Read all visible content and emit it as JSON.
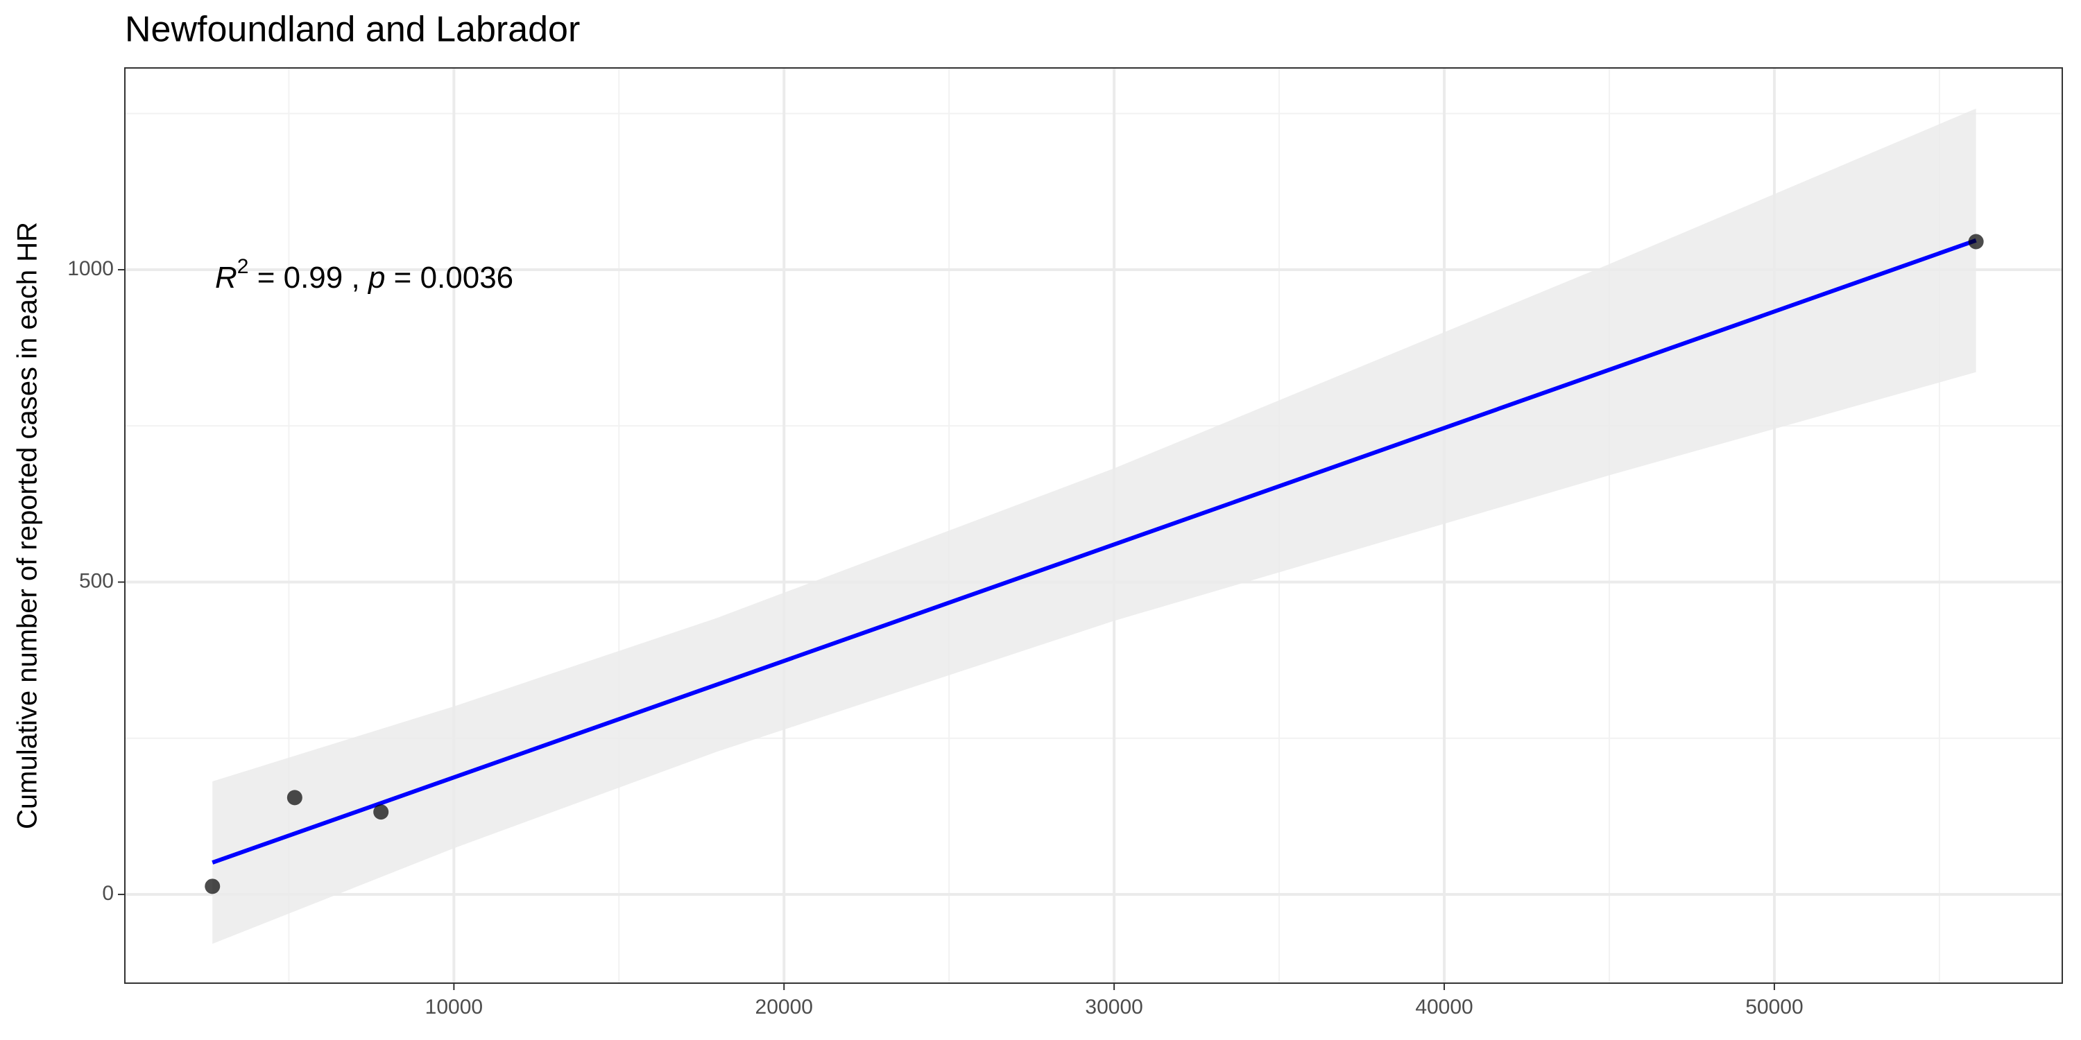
{
  "chart_data": {
    "type": "scatter",
    "title": "Newfoundland and Labrador",
    "y_label": "Cumulative number of reported cases in each HR",
    "annotation": [
      "R",
      "2",
      " = 0.99 , ",
      "p",
      " = 0.0036"
    ],
    "x": [
      2685,
      5177,
      7790,
      56109
    ],
    "values": [
      13,
      155,
      132,
      1045
    ],
    "color": "#000000",
    "fit": {
      "x": [
        2685,
        56109
      ],
      "y": [
        51,
        1047
      ],
      "color": "#0000ff"
    },
    "band": {
      "x": [
        2685,
        10000,
        17940,
        30000,
        45000,
        56109
      ],
      "lower": [
        -79,
        74,
        228,
        438,
        671,
        836
      ],
      "upper": [
        181,
        301,
        442,
        682,
        1009,
        1258
      ],
      "color": "#ebebeb"
    },
    "xlim": [
      32,
      58722
    ],
    "ylim": [
      -142,
      1323
    ],
    "xticks": [
      10000,
      20000,
      30000,
      40000,
      50000
    ],
    "xminor": [
      5000,
      15000,
      25000,
      35000,
      45000,
      55000
    ],
    "yticks": [
      0,
      500,
      1000
    ],
    "yminor": [
      250,
      750,
      1250
    ],
    "grid": true
  }
}
